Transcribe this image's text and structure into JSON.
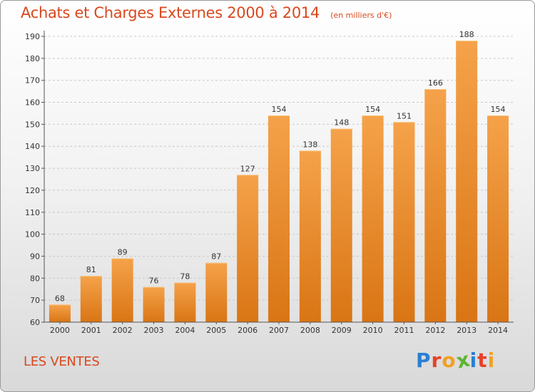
{
  "title": "Achats et Charges Externes 2000 à 2014",
  "subtitle": "(en milliers d'€)",
  "subject_label": "LES VENTES",
  "brand": {
    "letters": [
      "P",
      "r",
      "o",
      "x",
      "i",
      "t",
      "i"
    ],
    "colors": [
      "#2a7fd4",
      "#e8402a",
      "#f2a024",
      "#5cb531",
      "#2a7fd4",
      "#e8402a",
      "#f2a024"
    ]
  },
  "colors": {
    "bar": "#f0902e",
    "title": "#d9481e"
  },
  "chart_data": {
    "type": "bar",
    "title": "Achats et Charges Externes 2000 à 2014",
    "subtitle": "(en milliers d'€)",
    "xlabel": "",
    "ylabel": "",
    "categories": [
      "2000",
      "2001",
      "2002",
      "2003",
      "2004",
      "2005",
      "2006",
      "2007",
      "2008",
      "2009",
      "2010",
      "2011",
      "2012",
      "2013",
      "2014"
    ],
    "values": [
      68,
      81,
      89,
      76,
      78,
      87,
      127,
      154,
      138,
      148,
      154,
      151,
      166,
      188,
      154
    ],
    "ylim": [
      60,
      190
    ],
    "yticks": [
      60,
      70,
      80,
      90,
      100,
      110,
      120,
      130,
      140,
      150,
      160,
      170,
      180,
      190
    ],
    "grid": true,
    "legend": "none"
  }
}
